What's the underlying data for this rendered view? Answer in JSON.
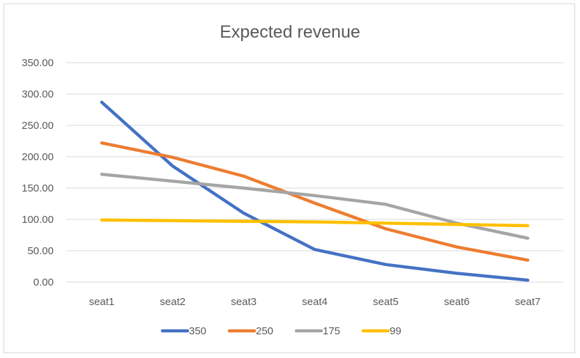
{
  "chart_data": {
    "type": "line",
    "title": "Expected revenue",
    "xlabel": "",
    "ylabel": "",
    "categories": [
      "seat1",
      "seat2",
      "seat3",
      "seat4",
      "seat5",
      "seat6",
      "seat7"
    ],
    "ylim": [
      0,
      350
    ],
    "yticks": [
      "0.00",
      "50.00",
      "100.00",
      "150.00",
      "200.00",
      "250.00",
      "300.00",
      "350.00"
    ],
    "grid": true,
    "legend_position": "bottom",
    "series": [
      {
        "name": "350",
        "color": "#4472C4",
        "values": [
          287,
          185,
          110,
          52,
          28,
          14,
          3
        ]
      },
      {
        "name": "250",
        "color": "#ED7D31",
        "values": [
          222,
          199,
          169,
          126,
          85,
          56,
          35
        ]
      },
      {
        "name": "175",
        "color": "#A5A5A5",
        "values": [
          172,
          161,
          150,
          138,
          124,
          94,
          70
        ]
      },
      {
        "name": "99",
        "color": "#FFC000",
        "values": [
          99,
          98,
          97,
          96,
          94,
          92,
          90
        ]
      }
    ]
  }
}
